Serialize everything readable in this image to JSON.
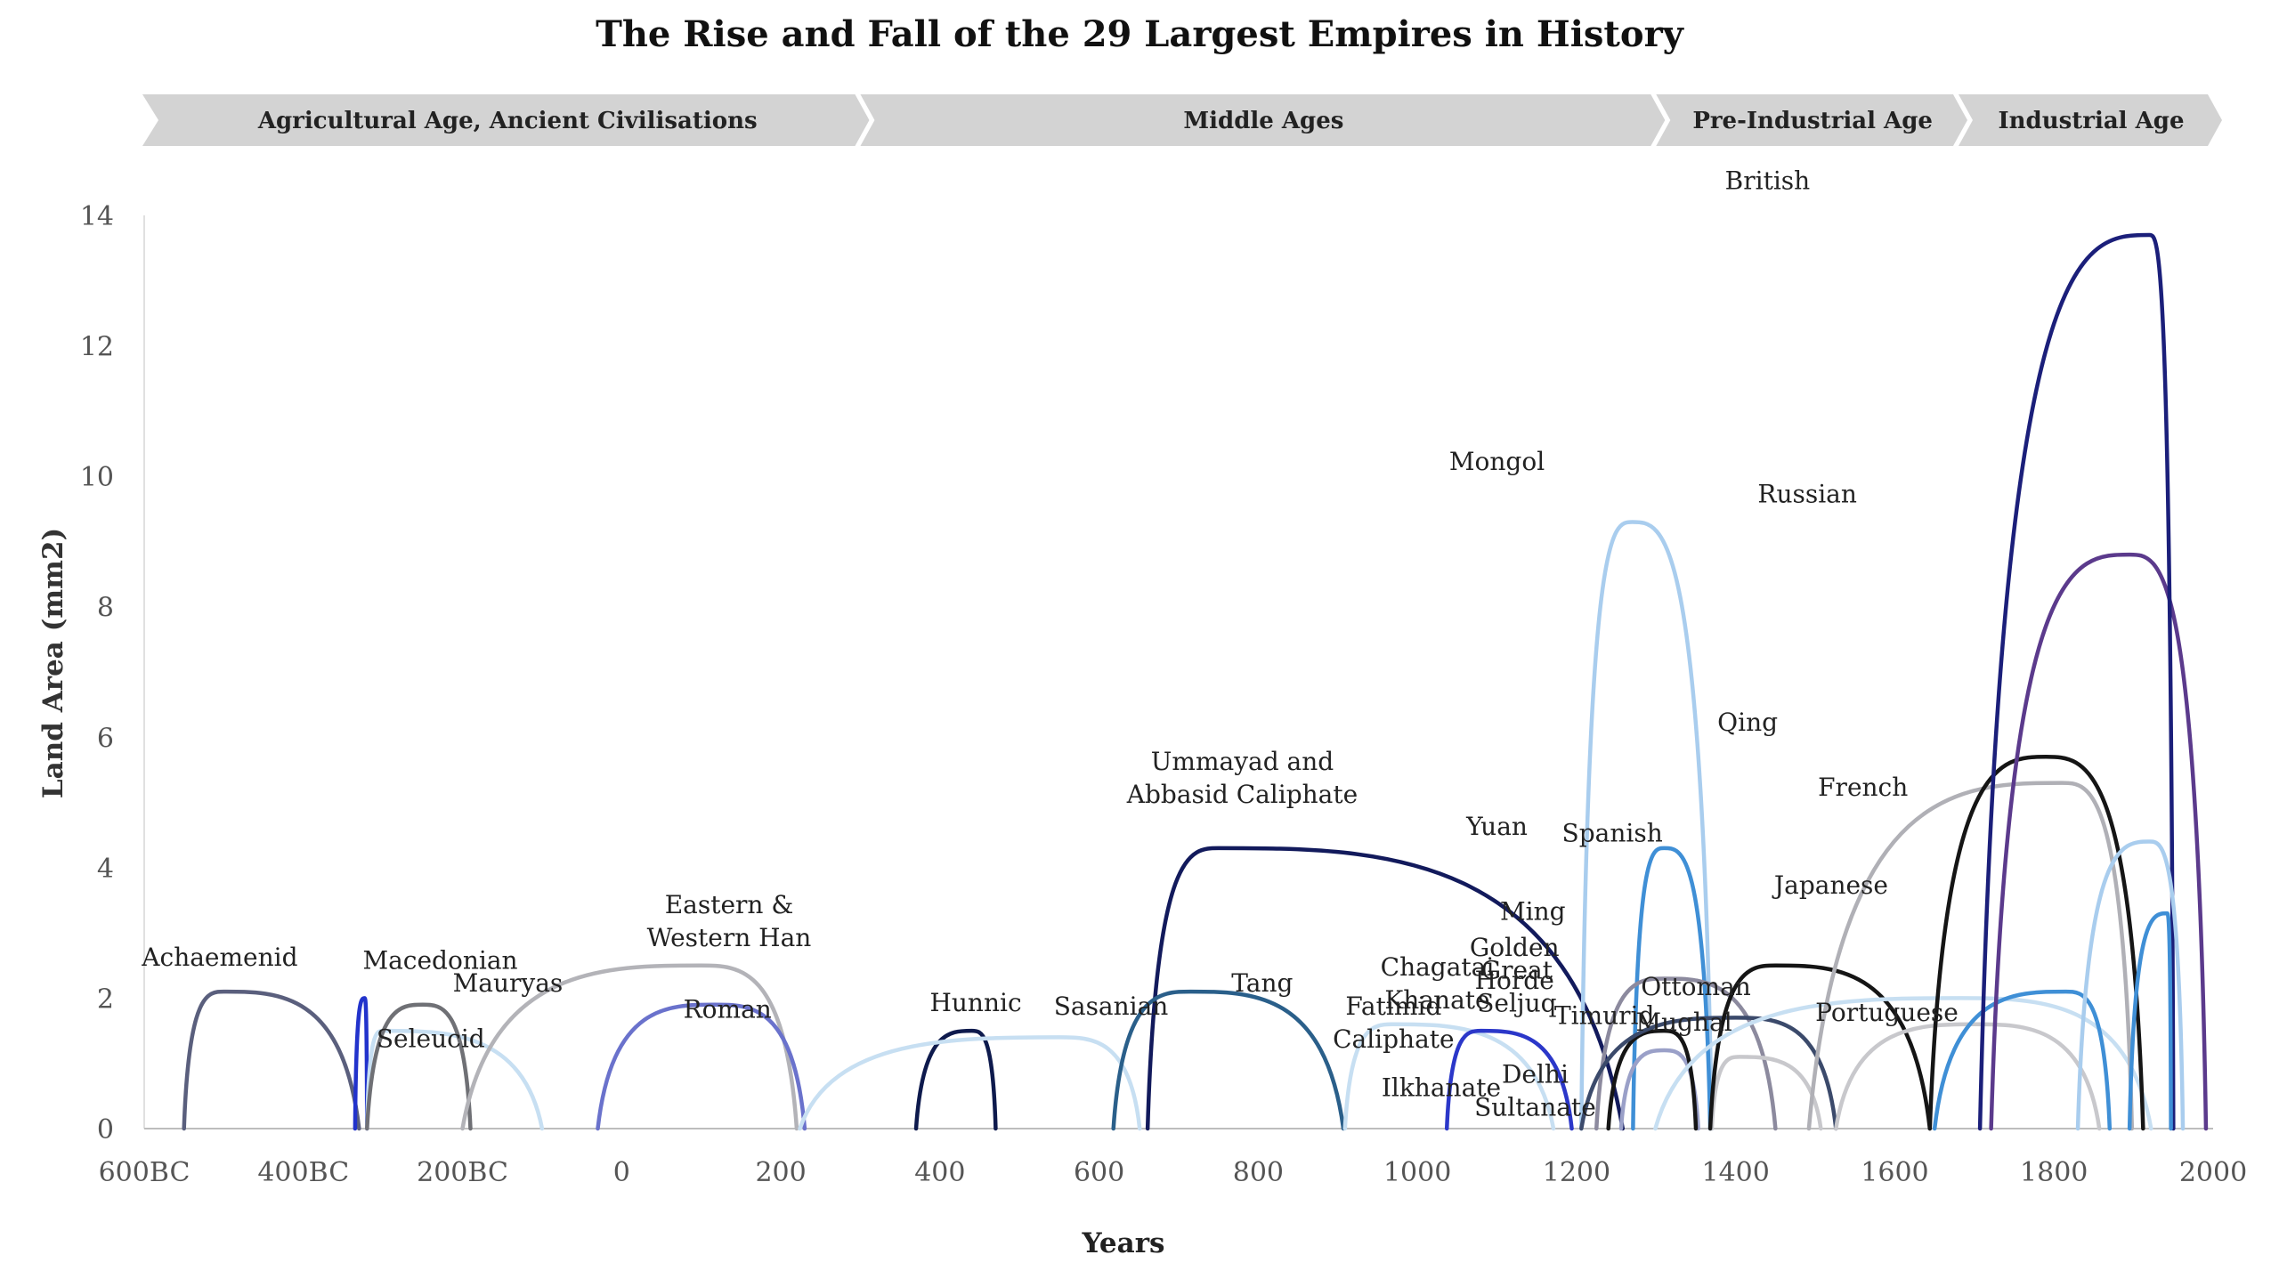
{
  "chart_data": {
    "type": "line",
    "title": "The Rise and Fall of the 29 Largest Empires in History",
    "xlabel": "Years",
    "ylabel": "Land Area (mm2)",
    "xlim": [
      -600,
      2000
    ],
    "ylim": [
      0,
      14
    ],
    "x_ticks": [
      {
        "value": -600,
        "label": "600BC"
      },
      {
        "value": -400,
        "label": "400BC"
      },
      {
        "value": -200,
        "label": "200BC"
      },
      {
        "value": 0,
        "label": "0"
      },
      {
        "value": 200,
        "label": "200"
      },
      {
        "value": 400,
        "label": "400"
      },
      {
        "value": 600,
        "label": "600"
      },
      {
        "value": 800,
        "label": "800"
      },
      {
        "value": 1000,
        "label": "1000"
      },
      {
        "value": 1200,
        "label": "1200"
      },
      {
        "value": 1400,
        "label": "1400"
      },
      {
        "value": 1600,
        "label": "1600"
      },
      {
        "value": 1800,
        "label": "1800"
      },
      {
        "value": 2000,
        "label": "2000"
      }
    ],
    "y_ticks": [
      0,
      2,
      4,
      6,
      8,
      10,
      12,
      14
    ],
    "grid": false,
    "eras": [
      {
        "label": "Agricultural Age, Ancient Civilisations",
        "start": -600,
        "end": 300
      },
      {
        "label": "Middle Ages",
        "start": 300,
        "end": 1300
      },
      {
        "label": "Pre-Industrial Age",
        "start": 1300,
        "end": 1680
      },
      {
        "label": "Industrial Age",
        "start": 1680,
        "end": 2000
      }
    ],
    "series": [
      {
        "name": "Achaemenid",
        "color": "#5a5f7d",
        "start": -550,
        "peak": -500,
        "peak_value": 2.1,
        "end": -330,
        "label_x": -505,
        "label_y": 2.5
      },
      {
        "name": "Macedonian",
        "color": "#2233cc",
        "start": -335,
        "peak": -323,
        "peak_value": 2.0,
        "end": -320,
        "label_x": -228,
        "label_y": 2.45
      },
      {
        "name": "Seleucid",
        "color": "#c7dff2",
        "start": -320,
        "peak": -300,
        "peak_value": 1.5,
        "end": -100,
        "label_x": -240,
        "label_y": 1.25
      },
      {
        "name": "Mauryas",
        "color": "#6f7075",
        "start": -320,
        "peak": -250,
        "peak_value": 1.9,
        "end": -190,
        "label_x": -143,
        "label_y": 2.1
      },
      {
        "name": "Eastern & Western Han",
        "color": "#b3b3b8",
        "start": -200,
        "peak": 100,
        "peak_value": 2.5,
        "end": 220,
        "label_x": 135,
        "label_y": 3.3
      },
      {
        "name": "Roman",
        "color": "#6a72cc",
        "start": -30,
        "peak": 117,
        "peak_value": 1.9,
        "end": 230,
        "label_x": 133,
        "label_y": 1.7
      },
      {
        "name": "Hunnic",
        "color": "#0e1a4d",
        "start": 370,
        "peak": 440,
        "peak_value": 1.5,
        "end": 470,
        "label_x": 445,
        "label_y": 1.8
      },
      {
        "name": "Sasanian",
        "color": "#c7dff2",
        "start": 224,
        "peak": 550,
        "peak_value": 1.4,
        "end": 651,
        "label_x": 615,
        "label_y": 1.75
      },
      {
        "name": "Ummayad and Abbasid Caliphate",
        "color": "#121a5c",
        "start": 661,
        "peak": 750,
        "peak_value": 4.3,
        "end": 1258,
        "label_x": 780,
        "label_y": 5.5
      },
      {
        "name": "Tang",
        "color": "#2a5f8a",
        "start": 618,
        "peak": 715,
        "peak_value": 2.1,
        "end": 907,
        "label_x": 805,
        "label_y": 2.1
      },
      {
        "name": "Fatimid Caliphate",
        "color": "#c7dff2",
        "start": 909,
        "peak": 969,
        "peak_value": 1.6,
        "end": 1171,
        "label_x": 970,
        "label_y": 1.75
      },
      {
        "name": "Great Seljuq",
        "color": "#2b37c9",
        "start": 1037,
        "peak": 1080,
        "peak_value": 1.5,
        "end": 1194,
        "label_x": 1125,
        "label_y": 2.3
      },
      {
        "name": "Mongol",
        "color": "#a9cdee",
        "start": 1206,
        "peak": 1270,
        "peak_value": 9.3,
        "end": 1370,
        "label_x": 1100,
        "label_y": 10.1
      },
      {
        "name": "Yuan",
        "color": "#3f8fd6",
        "start": 1271,
        "peak": 1310,
        "peak_value": 4.3,
        "end": 1368,
        "label_x": 1100,
        "label_y": 4.5
      },
      {
        "name": "Chagatai Khanate",
        "color": "#8c8a9e",
        "start": 1225,
        "peak": 1310,
        "peak_value": 2.3,
        "end": 1450,
        "label_x": 1025,
        "label_y": 2.35
      },
      {
        "name": "Ilkhanate",
        "color": "#9aa0c8",
        "start": 1256,
        "peak": 1310,
        "peak_value": 1.2,
        "end": 1353,
        "label_x": 1030,
        "label_y": 0.5
      },
      {
        "name": "Golden Horde",
        "color": "#151515",
        "start": 1240,
        "peak": 1310,
        "peak_value": 1.5,
        "end": 1350,
        "label_x": 1122,
        "label_y": 2.65
      },
      {
        "name": "Delhi Sultanate",
        "color": "#3b4a6b",
        "start": 1206,
        "peak": 1400,
        "peak_value": 1.7,
        "end": 1526,
        "label_x": 1148,
        "label_y": 0.7
      },
      {
        "name": "Timurid",
        "color": "#c8c8cc",
        "start": 1370,
        "peak": 1405,
        "peak_value": 1.1,
        "end": 1507,
        "label_x": 1235,
        "label_y": 1.6
      },
      {
        "name": "Ming",
        "color": "#151515",
        "start": 1368,
        "peak": 1450,
        "peak_value": 2.5,
        "end": 1644,
        "label_x": 1145,
        "label_y": 3.2
      },
      {
        "name": "Ottoman",
        "color": "#c7dff2",
        "start": 1299,
        "peak": 1683,
        "peak_value": 2.0,
        "end": 1922,
        "label_x": 1350,
        "label_y": 2.05
      },
      {
        "name": "Mughal",
        "color": "#c8c8cc",
        "start": 1526,
        "peak": 1700,
        "peak_value": 1.6,
        "end": 1857,
        "label_x": 1335,
        "label_y": 1.5
      },
      {
        "name": "Spanish",
        "color": "#b0b0b6",
        "start": 1492,
        "peak": 1810,
        "peak_value": 5.3,
        "end": 1898,
        "label_x": 1245,
        "label_y": 4.4
      },
      {
        "name": "Qing",
        "color": "#151515",
        "start": 1644,
        "peak": 1790,
        "peak_value": 5.7,
        "end": 1912,
        "label_x": 1415,
        "label_y": 6.1
      },
      {
        "name": "Portuguese",
        "color": "#3f8fd6",
        "start": 1650,
        "peak": 1815,
        "peak_value": 2.1,
        "end": 1870,
        "label_x": 1590,
        "label_y": 1.65
      },
      {
        "name": "Russian",
        "color": "#5b3a8c",
        "start": 1721,
        "peak": 1895,
        "peak_value": 8.8,
        "end": 1991,
        "label_x": 1490,
        "label_y": 9.6
      },
      {
        "name": "British",
        "color": "#1b1f7a",
        "start": 1707,
        "peak": 1920,
        "peak_value": 13.7,
        "end": 1950,
        "label_x": 1440,
        "label_y": 14.4
      },
      {
        "name": "French",
        "color": "#a9cdee",
        "start": 1830,
        "peak": 1920,
        "peak_value": 4.4,
        "end": 1962,
        "label_x": 1560,
        "label_y": 5.1
      },
      {
        "name": "Japanese",
        "color": "#3f8fd6",
        "start": 1895,
        "peak": 1942,
        "peak_value": 3.3,
        "end": 1947,
        "label_x": 1520,
        "label_y": 3.6
      }
    ]
  }
}
